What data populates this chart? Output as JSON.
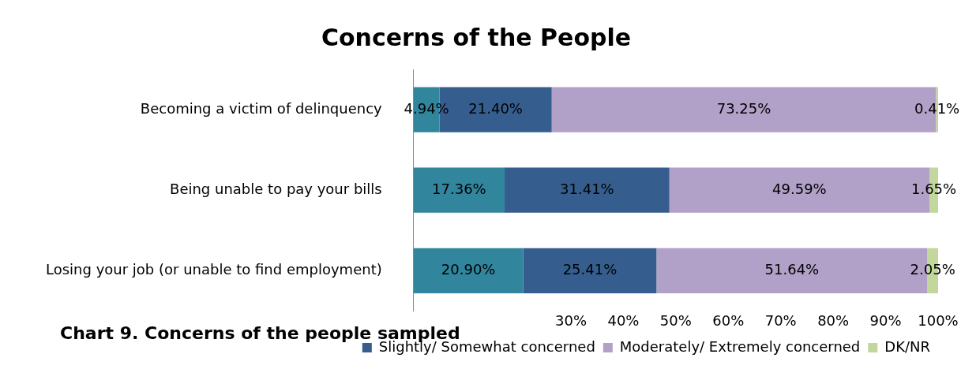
{
  "chart_data": {
    "type": "bar",
    "orientation": "horizontal",
    "stacked": true,
    "title": "Concerns of the People",
    "categories": [
      "Becoming a victim of delinquency",
      "Being unable to pay your bills",
      "Losing your job (or unable to find employment)"
    ],
    "series": [
      {
        "color": "#31859c",
        "values": [
          4.94,
          17.36,
          20.9
        ],
        "value_labels": [
          "4.94%",
          "17.36%",
          "20.90%"
        ]
      },
      {
        "name": "Slightly/ Somewhat concerned",
        "color": "#355e8f",
        "values": [
          21.4,
          31.41,
          25.41
        ],
        "value_labels": [
          "21.40%",
          "31.41%",
          "25.41%"
        ]
      },
      {
        "name": "Moderately/ Extremely concerned",
        "color": "#b1a0c7",
        "values": [
          73.25,
          49.59,
          51.64
        ],
        "value_labels": [
          "73.25%",
          "49.59%",
          "51.64%"
        ]
      },
      {
        "name": "DK/NR",
        "color": "#c3d69b",
        "values": [
          0.41,
          1.65,
          2.05
        ],
        "value_labels": [
          "0.41%",
          "1.65%",
          "2.05%"
        ]
      }
    ],
    "xlim": [
      0,
      100
    ],
    "xticks": [
      {
        "value": 30,
        "label": "30%"
      },
      {
        "value": 40,
        "label": "40%"
      },
      {
        "value": 50,
        "label": "50%"
      },
      {
        "value": 60,
        "label": "60%"
      },
      {
        "value": 70,
        "label": "70%"
      },
      {
        "value": 80,
        "label": "80%"
      },
      {
        "value": 90,
        "label": "90%"
      },
      {
        "value": 100,
        "label": "100%"
      }
    ],
    "grid": false,
    "legend": "bottom",
    "annotations": [
      "Chart 9. Concerns of the people sampled"
    ]
  }
}
